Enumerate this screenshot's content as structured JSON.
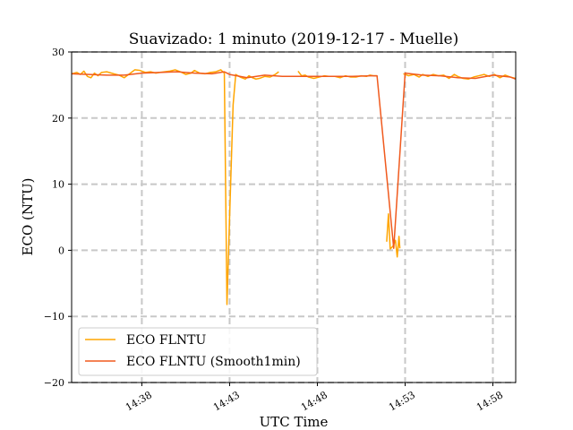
{
  "chart_data": {
    "type": "line",
    "title": "Suavizado: 1 minuto (2019-12-17 - Muelle)",
    "xlabel": "UTC Time",
    "ylabel": "ECO (NTU)",
    "xlim": [
      34.0,
      59.3
    ],
    "ylim": [
      -20,
      30
    ],
    "x_ticks": [
      {
        "value": 38,
        "label": "14:38"
      },
      {
        "value": 43,
        "label": "14:43"
      },
      {
        "value": 48,
        "label": "14:48"
      },
      {
        "value": 53,
        "label": "14:53"
      },
      {
        "value": 58,
        "label": "14:58"
      }
    ],
    "y_ticks": [
      {
        "value": -20,
        "label": "−20"
      },
      {
        "value": -10,
        "label": "−10"
      },
      {
        "value": 0,
        "label": "0"
      },
      {
        "value": 10,
        "label": "10"
      },
      {
        "value": 20,
        "label": "20"
      },
      {
        "value": 30,
        "label": "30"
      }
    ],
    "grid": true,
    "legend_position": "lower-left",
    "series": [
      {
        "name": "ECO FLNTU",
        "color": "#ffa500",
        "segments": [
          [
            [
              34.0,
              26.7
            ],
            [
              34.3,
              26.9
            ],
            [
              34.5,
              26.6
            ],
            [
              34.7,
              27.1
            ],
            [
              34.9,
              26.3
            ],
            [
              35.1,
              26.1
            ],
            [
              35.3,
              26.8
            ],
            [
              35.5,
              26.4
            ],
            [
              35.7,
              26.9
            ],
            [
              36.0,
              27.0
            ],
            [
              36.4,
              26.7
            ],
            [
              36.7,
              26.5
            ],
            [
              37.0,
              26.1
            ],
            [
              37.2,
              26.5
            ],
            [
              37.4,
              26.9
            ],
            [
              37.6,
              27.3
            ],
            [
              37.9,
              27.2
            ],
            [
              38.2,
              26.9
            ],
            [
              38.5,
              27.0
            ],
            [
              38.8,
              26.8
            ],
            [
              39.0,
              26.9
            ],
            [
              39.3,
              27.0
            ],
            [
              39.6,
              27.1
            ],
            [
              39.9,
              27.3
            ],
            [
              40.2,
              27.0
            ],
            [
              40.5,
              26.6
            ],
            [
              40.8,
              26.8
            ],
            [
              41.0,
              27.2
            ],
            [
              41.3,
              26.8
            ],
            [
              41.6,
              26.7
            ],
            [
              41.9,
              26.9
            ],
            [
              42.2,
              27.0
            ],
            [
              42.5,
              27.3
            ],
            [
              42.7,
              26.8
            ],
            [
              42.85,
              -8.2
            ],
            [
              43.0,
              5.0
            ],
            [
              43.2,
              22.0
            ],
            [
              43.35,
              26.6
            ],
            [
              43.6,
              26.2
            ],
            [
              43.9,
              25.9
            ],
            [
              44.1,
              26.4
            ],
            [
              44.3,
              26.1
            ],
            [
              44.5,
              25.9
            ],
            [
              44.7,
              26.0
            ],
            [
              45.0,
              26.3
            ],
            [
              45.3,
              26.2
            ],
            [
              45.6,
              26.6
            ],
            [
              45.8,
              27.0
            ]
          ],
          [
            [
              46.9,
              27.1
            ],
            [
              47.1,
              26.4
            ],
            [
              47.3,
              26.5
            ],
            [
              47.5,
              26.2
            ],
            [
              47.8,
              26.0
            ],
            [
              48.1,
              26.2
            ],
            [
              48.4,
              26.4
            ],
            [
              48.7,
              26.3
            ],
            [
              49.0,
              26.3
            ],
            [
              49.3,
              26.1
            ],
            [
              49.6,
              26.4
            ],
            [
              49.9,
              26.2
            ],
            [
              50.2,
              26.2
            ],
            [
              50.5,
              26.4
            ],
            [
              50.8,
              26.3
            ],
            [
              51.0,
              26.5
            ],
            [
              51.2,
              26.4
            ],
            [
              51.4,
              26.4
            ]
          ],
          [
            [
              51.95,
              1.3
            ],
            [
              52.05,
              5.5
            ],
            [
              52.15,
              0.2
            ],
            [
              52.3,
              0.6
            ],
            [
              52.45,
              1.5
            ],
            [
              52.55,
              -1.0
            ],
            [
              52.65,
              2.1
            ],
            [
              52.7,
              0.3
            ]
          ],
          [
            [
              52.9,
              26.7
            ],
            [
              53.2,
              26.4
            ],
            [
              53.5,
              26.6
            ],
            [
              53.8,
              26.2
            ],
            [
              54.0,
              26.6
            ],
            [
              54.3,
              26.3
            ],
            [
              54.6,
              26.6
            ],
            [
              54.9,
              26.4
            ],
            [
              55.2,
              26.5
            ],
            [
              55.5,
              26.0
            ],
            [
              55.8,
              26.6
            ],
            [
              56.0,
              26.3
            ],
            [
              56.3,
              26.0
            ],
            [
              56.6,
              25.9
            ],
            [
              56.9,
              26.2
            ],
            [
              57.2,
              26.4
            ],
            [
              57.5,
              26.6
            ],
            [
              57.8,
              26.3
            ],
            [
              58.1,
              26.6
            ],
            [
              58.4,
              26.1
            ],
            [
              58.7,
              26.5
            ],
            [
              59.0,
              26.2
            ],
            [
              59.3,
              26.0
            ]
          ]
        ]
      },
      {
        "name": "ECO FLNTU (Smooth1min)",
        "color": "#f05a1e",
        "segments": [
          [
            [
              34.0,
              26.7
            ],
            [
              35.0,
              26.6
            ],
            [
              36.0,
              26.5
            ],
            [
              37.0,
              26.5
            ],
            [
              38.0,
              26.8
            ],
            [
              39.0,
              26.9
            ],
            [
              40.0,
              27.0
            ],
            [
              41.0,
              26.8
            ],
            [
              42.0,
              26.7
            ],
            [
              42.7,
              27.0
            ],
            [
              43.0,
              26.6
            ],
            [
              44.0,
              26.1
            ],
            [
              45.0,
              26.5
            ],
            [
              46.0,
              26.3
            ],
            [
              47.0,
              26.3
            ],
            [
              48.0,
              26.3
            ],
            [
              49.0,
              26.3
            ],
            [
              50.0,
              26.3
            ],
            [
              51.0,
              26.4
            ],
            [
              51.4,
              26.4
            ],
            [
              52.35,
              0.3
            ],
            [
              53.0,
              26.8
            ],
            [
              54.0,
              26.5
            ],
            [
              55.0,
              26.4
            ],
            [
              56.0,
              26.1
            ],
            [
              57.0,
              26.0
            ],
            [
              58.0,
              26.5
            ],
            [
              59.0,
              26.2
            ],
            [
              59.3,
              25.9
            ]
          ]
        ]
      }
    ]
  }
}
